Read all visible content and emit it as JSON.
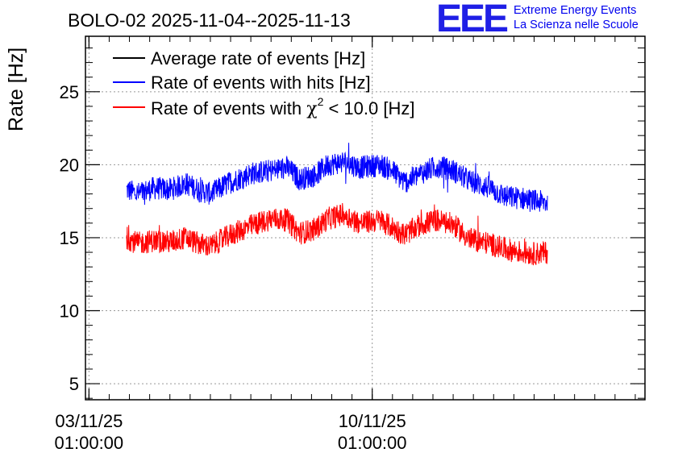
{
  "logo": {
    "letters": "EEE",
    "line1": "Extreme Energy Events",
    "line2": "La Scienza nelle Scuole"
  },
  "chart_data": {
    "type": "line",
    "title": "BOLO-02 2025-11-04--2025-11-13",
    "ylabel": "Rate [Hz]",
    "xlabel": "",
    "ylim": [
      3.9,
      28.8
    ],
    "y_ticks": [
      5,
      10,
      15,
      20,
      25
    ],
    "x_range_days": [
      -0.0866,
      13.74
    ],
    "x_ticks": [
      {
        "day": 0,
        "label": [
          "03/11/25",
          "01:00:00"
        ]
      },
      {
        "day": 7,
        "label": [
          "10/11/25",
          "01:00:00"
        ]
      }
    ],
    "grid": true,
    "legend_position": "top-left",
    "series": [
      {
        "name": "Average rate of events [Hz]",
        "color": "#000000",
        "points": []
      },
      {
        "name": "Rate of events with hits [Hz]",
        "color": "#0000ff",
        "noise": 0.8,
        "points": [
          [
            0.93,
            18.3
          ],
          [
            1.2,
            18.0
          ],
          [
            1.6,
            18.4
          ],
          [
            2.0,
            18.3
          ],
          [
            2.4,
            18.7
          ],
          [
            2.7,
            18.3
          ],
          [
            3.0,
            18.0
          ],
          [
            3.5,
            18.8
          ],
          [
            4.0,
            19.4
          ],
          [
            4.5,
            19.6
          ],
          [
            4.9,
            19.8
          ],
          [
            5.2,
            19.0
          ],
          [
            5.6,
            19.3
          ],
          [
            5.9,
            20.0
          ],
          [
            6.3,
            20.2
          ],
          [
            6.7,
            19.8
          ],
          [
            7.2,
            20.0
          ],
          [
            7.5,
            19.6
          ],
          [
            7.8,
            18.8
          ],
          [
            8.2,
            19.4
          ],
          [
            8.6,
            19.9
          ],
          [
            9.0,
            19.6
          ],
          [
            9.4,
            18.9
          ],
          [
            9.9,
            18.4
          ],
          [
            10.3,
            17.8
          ],
          [
            10.7,
            17.7
          ],
          [
            11.0,
            17.5
          ],
          [
            11.33,
            17.4
          ]
        ]
      },
      {
        "name": "Rate of events with χ² < 10.0 [Hz]",
        "legend_prefix": "Rate of events with ",
        "legend_chi": "χ",
        "legend_sup": "2",
        "legend_suffix": " < 10.0 [Hz]",
        "color": "#ff0000",
        "noise": 0.8,
        "points": [
          [
            0.93,
            15.0
          ],
          [
            1.2,
            14.6
          ],
          [
            1.6,
            14.8
          ],
          [
            2.0,
            14.7
          ],
          [
            2.4,
            15.0
          ],
          [
            2.7,
            14.6
          ],
          [
            3.0,
            14.4
          ],
          [
            3.5,
            15.2
          ],
          [
            4.0,
            15.8
          ],
          [
            4.5,
            16.3
          ],
          [
            4.9,
            16.2
          ],
          [
            5.2,
            15.3
          ],
          [
            5.6,
            15.6
          ],
          [
            5.9,
            16.3
          ],
          [
            6.3,
            16.6
          ],
          [
            6.7,
            16.0
          ],
          [
            7.2,
            16.2
          ],
          [
            7.5,
            15.7
          ],
          [
            7.8,
            15.2
          ],
          [
            8.2,
            15.9
          ],
          [
            8.6,
            16.2
          ],
          [
            9.0,
            15.9
          ],
          [
            9.4,
            14.9
          ],
          [
            9.9,
            14.6
          ],
          [
            10.3,
            14.2
          ],
          [
            10.7,
            14.0
          ],
          [
            11.0,
            13.9
          ],
          [
            11.33,
            14.0
          ]
        ]
      }
    ]
  }
}
